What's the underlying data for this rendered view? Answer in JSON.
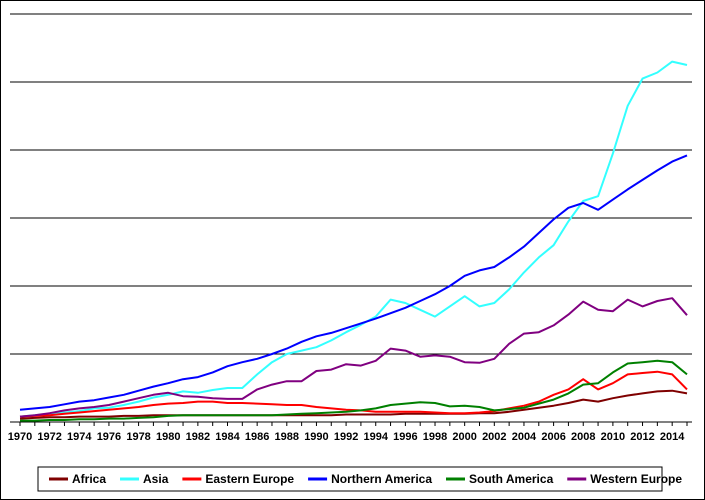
{
  "chart_data": {
    "type": "line",
    "title": "",
    "xlabel": "",
    "ylabel": "",
    "y_tick_labels_shown": false,
    "grid": "horizontal",
    "legend_position": "bottom",
    "xlim": [
      1970,
      2015
    ],
    "ylim": [
      0,
      6
    ],
    "x_tick_labels": [
      "1970",
      "1972",
      "1974",
      "1976",
      "1978",
      "1980",
      "1982",
      "1984",
      "1986",
      "1988",
      "1990",
      "1992",
      "1994",
      "1996",
      "1998",
      "2000",
      "2002",
      "2004",
      "2006",
      "2008",
      "2010",
      "2012",
      "2014"
    ],
    "x": [
      1970,
      1971,
      1972,
      1973,
      1974,
      1975,
      1976,
      1977,
      1978,
      1979,
      1980,
      1981,
      1982,
      1983,
      1984,
      1985,
      1986,
      1987,
      1988,
      1989,
      1990,
      1991,
      1992,
      1993,
      1994,
      1995,
      1996,
      1997,
      1998,
      1999,
      2000,
      2001,
      2002,
      2003,
      2004,
      2005,
      2006,
      2007,
      2008,
      2009,
      2010,
      2011,
      2012,
      2013,
      2014,
      2015
    ],
    "series": [
      {
        "name": "Africa",
        "color": "#7f0000",
        "values": [
          0.05,
          0.06,
          0.07,
          0.07,
          0.08,
          0.08,
          0.08,
          0.09,
          0.09,
          0.1,
          0.1,
          0.1,
          0.1,
          0.1,
          0.1,
          0.1,
          0.1,
          0.1,
          0.1,
          0.1,
          0.1,
          0.1,
          0.11,
          0.11,
          0.11,
          0.11,
          0.12,
          0.12,
          0.12,
          0.12,
          0.12,
          0.13,
          0.13,
          0.15,
          0.18,
          0.21,
          0.24,
          0.28,
          0.33,
          0.3,
          0.35,
          0.39,
          0.42,
          0.45,
          0.46,
          0.42
        ]
      },
      {
        "name": "Asia",
        "color": "#33ffff",
        "values": [
          0.08,
          0.1,
          0.12,
          0.14,
          0.16,
          0.2,
          0.21,
          0.25,
          0.3,
          0.36,
          0.4,
          0.45,
          0.43,
          0.47,
          0.5,
          0.5,
          0.7,
          0.88,
          1.0,
          1.05,
          1.1,
          1.2,
          1.32,
          1.43,
          1.55,
          1.8,
          1.75,
          1.65,
          1.55,
          1.7,
          1.85,
          1.7,
          1.75,
          1.95,
          2.2,
          2.42,
          2.6,
          2.95,
          3.25,
          3.32,
          3.95,
          4.65,
          5.05,
          5.14,
          5.3,
          5.25
        ]
      },
      {
        "name": "Eastern Europe",
        "color": "#ff0000",
        "values": [
          0.08,
          0.09,
          0.1,
          0.12,
          0.14,
          0.16,
          0.18,
          0.2,
          0.22,
          0.25,
          0.27,
          0.28,
          0.3,
          0.3,
          0.28,
          0.28,
          0.27,
          0.26,
          0.25,
          0.25,
          0.22,
          0.2,
          0.18,
          0.17,
          0.15,
          0.15,
          0.15,
          0.15,
          0.14,
          0.13,
          0.13,
          0.14,
          0.16,
          0.2,
          0.24,
          0.3,
          0.4,
          0.48,
          0.63,
          0.48,
          0.57,
          0.7,
          0.72,
          0.74,
          0.7,
          0.48
        ]
      },
      {
        "name": "Northern America",
        "color": "#0000ff",
        "values": [
          0.18,
          0.2,
          0.22,
          0.26,
          0.3,
          0.32,
          0.36,
          0.4,
          0.46,
          0.52,
          0.57,
          0.63,
          0.66,
          0.73,
          0.82,
          0.88,
          0.93,
          1.0,
          1.08,
          1.18,
          1.26,
          1.31,
          1.38,
          1.45,
          1.52,
          1.6,
          1.68,
          1.78,
          1.88,
          2.0,
          2.15,
          2.23,
          2.28,
          2.42,
          2.58,
          2.78,
          2.98,
          3.15,
          3.22,
          3.12,
          3.27,
          3.42,
          3.56,
          3.7,
          3.83,
          3.92
        ]
      },
      {
        "name": "South America",
        "color": "#008000",
        "values": [
          0.02,
          0.02,
          0.03,
          0.03,
          0.04,
          0.04,
          0.05,
          0.05,
          0.06,
          0.07,
          0.09,
          0.1,
          0.1,
          0.1,
          0.1,
          0.1,
          0.1,
          0.1,
          0.11,
          0.12,
          0.13,
          0.14,
          0.15,
          0.17,
          0.2,
          0.25,
          0.27,
          0.29,
          0.28,
          0.23,
          0.24,
          0.22,
          0.17,
          0.19,
          0.21,
          0.27,
          0.33,
          0.42,
          0.55,
          0.57,
          0.73,
          0.86,
          0.88,
          0.9,
          0.88,
          0.7
        ]
      },
      {
        "name": "Western Europe",
        "color": "#800080",
        "values": [
          0.08,
          0.1,
          0.13,
          0.17,
          0.2,
          0.22,
          0.25,
          0.3,
          0.35,
          0.4,
          0.43,
          0.38,
          0.37,
          0.35,
          0.34,
          0.34,
          0.48,
          0.55,
          0.6,
          0.6,
          0.75,
          0.77,
          0.85,
          0.83,
          0.9,
          1.08,
          1.05,
          0.96,
          0.98,
          0.96,
          0.88,
          0.87,
          0.93,
          1.15,
          1.3,
          1.32,
          1.42,
          1.58,
          1.77,
          1.65,
          1.63,
          1.8,
          1.7,
          1.78,
          1.82,
          1.57
        ]
      }
    ]
  }
}
